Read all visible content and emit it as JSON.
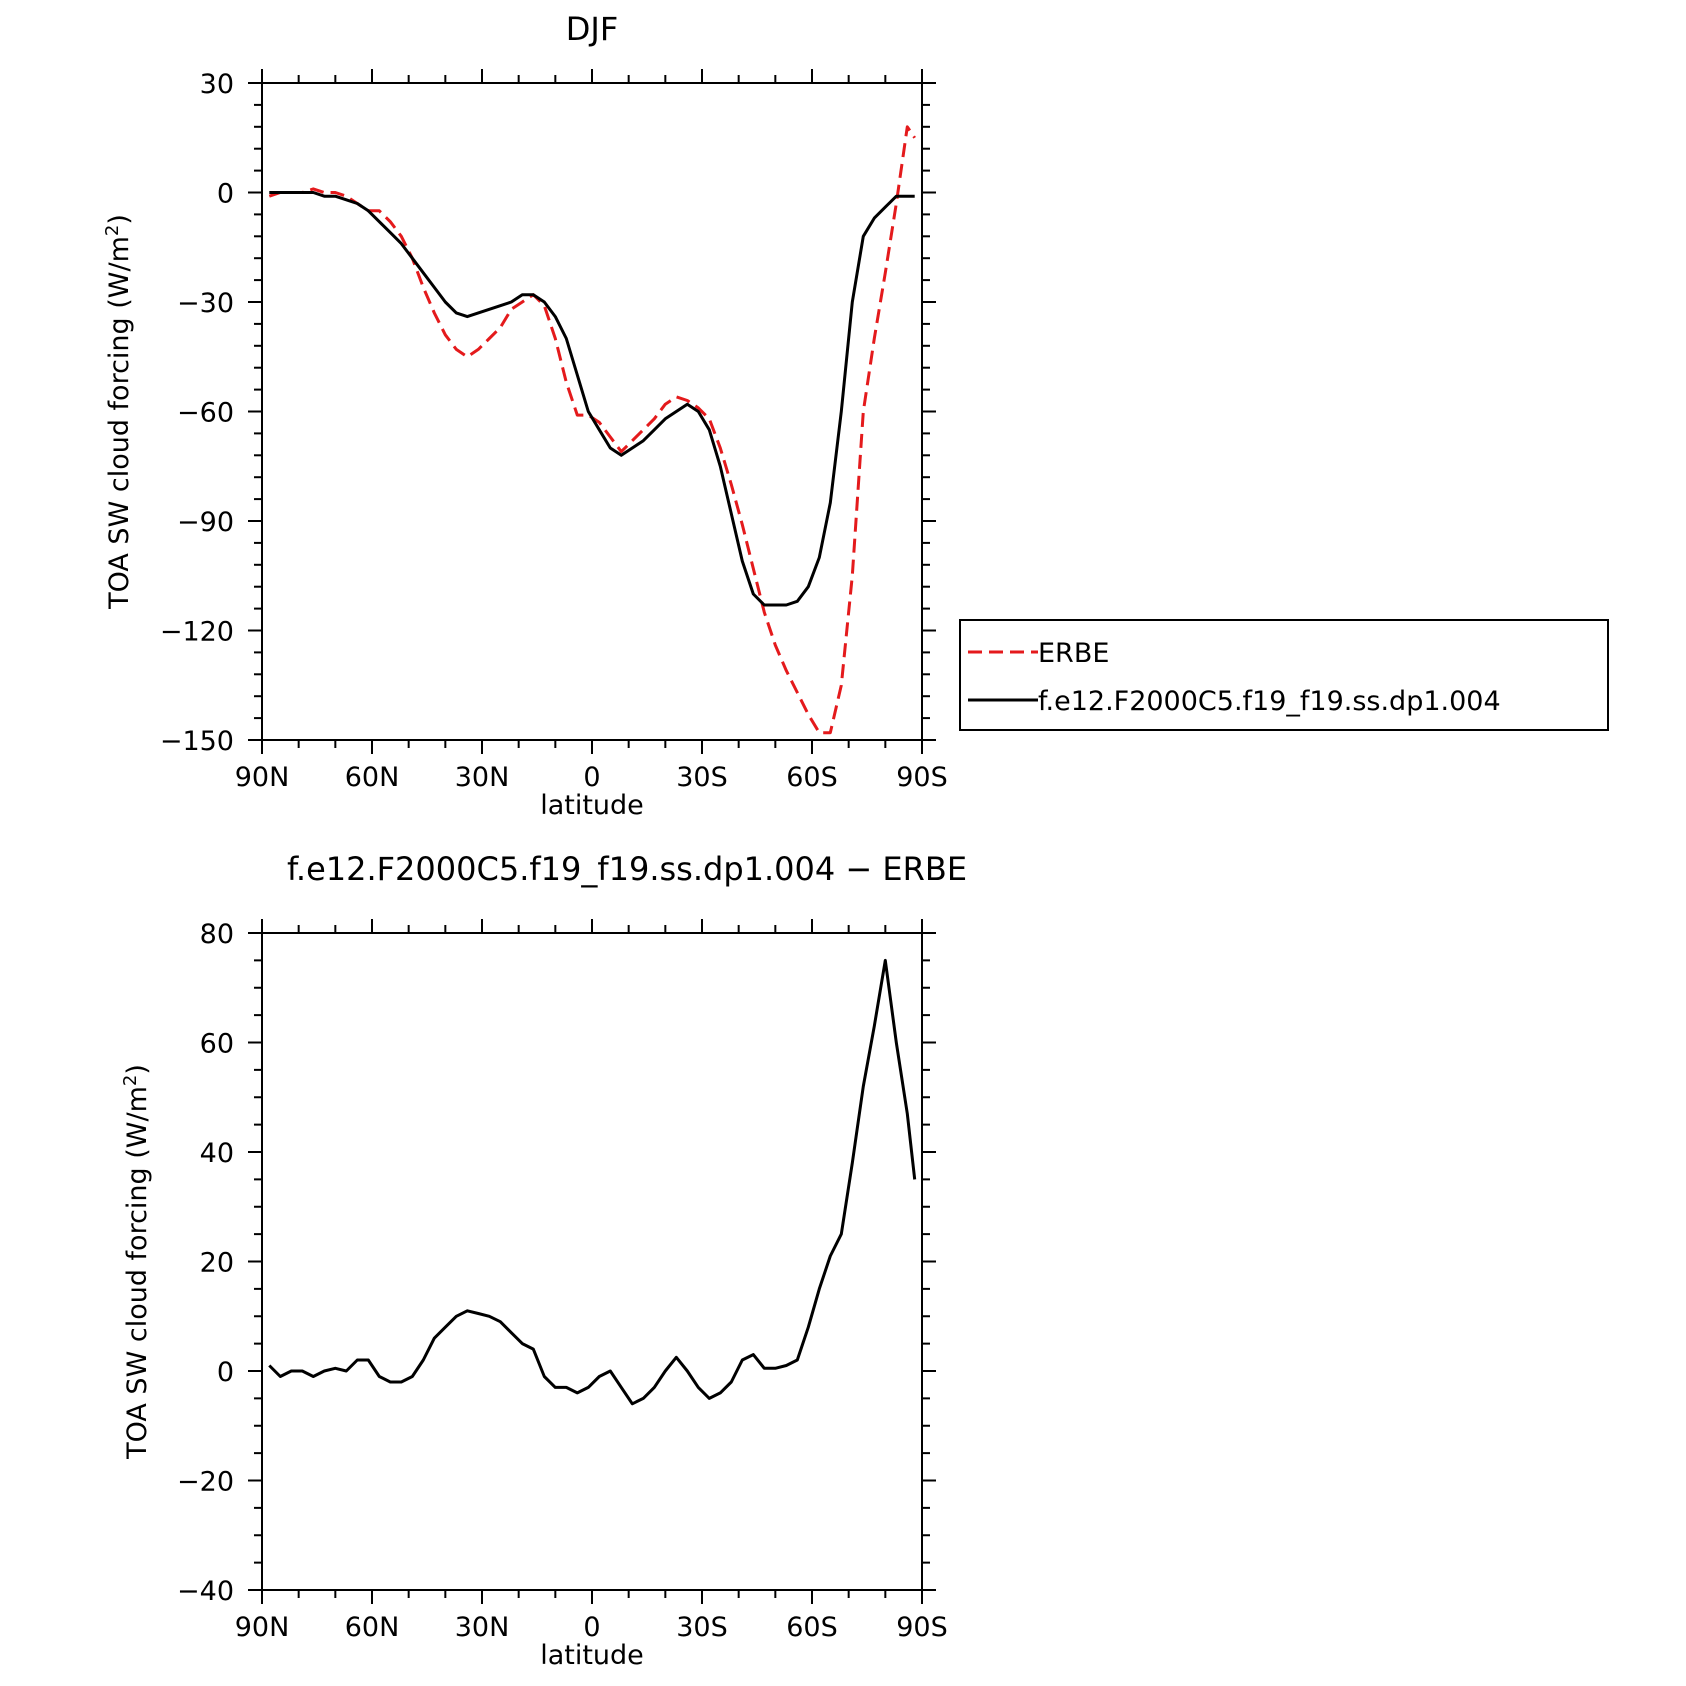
{
  "chart_data": [
    {
      "type": "line",
      "title": "DJF",
      "xlabel": "latitude",
      "ylabel": "TOA SW cloud forcing (W/m",
      "ylabel_sup": "2",
      "ylabel_end": ")",
      "xlim": [
        90,
        -90
      ],
      "ylim": [
        -150,
        30
      ],
      "xticks": [
        {
          "value": 90,
          "label": "90N"
        },
        {
          "value": 60,
          "label": "60N"
        },
        {
          "value": 30,
          "label": "30N"
        },
        {
          "value": 0,
          "label": "0"
        },
        {
          "value": -30,
          "label": "30S"
        },
        {
          "value": -60,
          "label": "60S"
        },
        {
          "value": -90,
          "label": "90S"
        }
      ],
      "yticks": [
        {
          "value": 30,
          "label": "30"
        },
        {
          "value": 0,
          "label": "0"
        },
        {
          "value": -30,
          "label": "−30"
        },
        {
          "value": -60,
          "label": "−60"
        },
        {
          "value": -90,
          "label": "−90"
        },
        {
          "value": -120,
          "label": "−120"
        },
        {
          "value": -150,
          "label": "−150"
        }
      ],
      "legend": {
        "placement": "right"
      },
      "series": [
        {
          "name": "ERBE",
          "color": "#e41a1c",
          "dash": true,
          "x": [
            88,
            85,
            82,
            79,
            76,
            73,
            70,
            67,
            64,
            61,
            58,
            55,
            52,
            49,
            46,
            43,
            40,
            37,
            34,
            31,
            28,
            25,
            22,
            19,
            16,
            13,
            10,
            7,
            4,
            1,
            -2,
            -5,
            -8,
            -11,
            -14,
            -17,
            -20,
            -23,
            -26,
            -29,
            -32,
            -35,
            -38,
            -41,
            -44,
            -47,
            -50,
            -53,
            -56,
            -59,
            -62,
            -65,
            -68,
            -71,
            -74,
            -77,
            -80,
            -83,
            -86,
            -88
          ],
          "y": [
            -1,
            0,
            0,
            0,
            1,
            0,
            0,
            -1,
            -3,
            -5,
            -5,
            -8,
            -12,
            -18,
            -26,
            -33,
            -39,
            -43,
            -45,
            -43,
            -40,
            -37,
            -32,
            -30,
            -28,
            -31,
            -40,
            -52,
            -61,
            -61,
            -63,
            -67,
            -71,
            -68,
            -65,
            -62,
            -58,
            -56,
            -57,
            -59,
            -62,
            -70,
            -80,
            -91,
            -103,
            -115,
            -124,
            -131,
            -137,
            -143,
            -148,
            -148,
            -135,
            -105,
            -60,
            -40,
            -22,
            -3,
            18,
            15
          ]
        },
        {
          "name": "f.e12.F2000C5.f19_f19.ss.dp1.004",
          "color": "#000000",
          "dash": false,
          "x": [
            88,
            85,
            82,
            79,
            76,
            73,
            70,
            67,
            64,
            61,
            58,
            55,
            52,
            49,
            46,
            43,
            40,
            37,
            34,
            31,
            28,
            25,
            22,
            19,
            16,
            13,
            10,
            7,
            4,
            1,
            -2,
            -5,
            -8,
            -11,
            -14,
            -17,
            -20,
            -23,
            -26,
            -29,
            -32,
            -35,
            -38,
            -41,
            -44,
            -47,
            -50,
            -53,
            -56,
            -59,
            -62,
            -65,
            -68,
            -71,
            -74,
            -77,
            -80,
            -83,
            -86,
            -88
          ],
          "y": [
            0,
            0,
            0,
            0,
            0,
            -1,
            -1,
            -2,
            -3,
            -5,
            -8,
            -11,
            -14,
            -18,
            -22,
            -26,
            -30,
            -33,
            -34,
            -33,
            -32,
            -31,
            -30,
            -28,
            -28,
            -30,
            -34,
            -40,
            -50,
            -60,
            -65,
            -70,
            -72,
            -70,
            -68,
            -65,
            -62,
            -60,
            -58,
            -60,
            -65,
            -75,
            -88,
            -101,
            -110,
            -113,
            -113,
            -113,
            -112,
            -108,
            -100,
            -85,
            -60,
            -30,
            -12,
            -7,
            -4,
            -1,
            -1,
            -1
          ]
        }
      ]
    },
    {
      "type": "line",
      "title": "f.e12.F2000C5.f19_f19.ss.dp1.004 − ERBE",
      "xlabel": "latitude",
      "ylabel": "TOA SW cloud forcing (W/m",
      "ylabel_sup": "2",
      "ylabel_end": ")",
      "xlim": [
        90,
        -90
      ],
      "ylim": [
        -40,
        80
      ],
      "xticks": [
        {
          "value": 90,
          "label": "90N"
        },
        {
          "value": 60,
          "label": "60N"
        },
        {
          "value": 30,
          "label": "30N"
        },
        {
          "value": 0,
          "label": "0"
        },
        {
          "value": -30,
          "label": "30S"
        },
        {
          "value": -60,
          "label": "60S"
        },
        {
          "value": -90,
          "label": "90S"
        }
      ],
      "yticks": [
        {
          "value": 80,
          "label": "80"
        },
        {
          "value": 60,
          "label": "60"
        },
        {
          "value": 40,
          "label": "40"
        },
        {
          "value": 20,
          "label": "20"
        },
        {
          "value": 0,
          "label": "0"
        },
        {
          "value": -20,
          "label": "−20"
        },
        {
          "value": -40,
          "label": "−40"
        }
      ],
      "series": [
        {
          "color": "#000000",
          "dash": false,
          "x": [
            88,
            85,
            82,
            79,
            76,
            73,
            70,
            67,
            64,
            61,
            58,
            55,
            52,
            49,
            46,
            43,
            40,
            37,
            34,
            31,
            28,
            25,
            22,
            19,
            16,
            13,
            10,
            7,
            4,
            1,
            -2,
            -5,
            -8,
            -11,
            -14,
            -17,
            -20,
            -23,
            -26,
            -29,
            -32,
            -35,
            -38,
            -41,
            -44,
            -47,
            -50,
            -53,
            -56,
            -59,
            -62,
            -65,
            -68,
            -71,
            -74,
            -77,
            -80,
            -83,
            -86,
            -88
          ],
          "y": [
            1,
            -1,
            0,
            0,
            -1,
            0,
            0.5,
            0,
            2,
            2,
            -1,
            -2,
            -2,
            -1,
            2,
            6,
            8,
            10,
            11,
            10.5,
            10,
            9,
            7,
            5,
            4,
            -1,
            -3,
            -3,
            -4,
            -3,
            -1,
            0,
            -3,
            -6,
            -5,
            -3,
            0,
            2.5,
            0,
            -3,
            -5,
            -4,
            -2,
            2,
            3,
            0.5,
            0.5,
            1,
            2,
            8,
            15,
            21,
            25,
            38,
            52,
            63,
            75,
            60,
            47,
            35
          ]
        }
      ]
    }
  ]
}
